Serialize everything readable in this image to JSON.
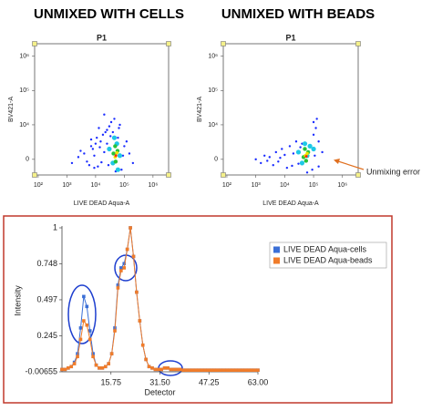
{
  "chart_data": [
    {
      "type": "scatter",
      "heading": "UNMIXED WITH CELLS",
      "title": "P1",
      "xlabel": "LIVE DEAD Aqua-A",
      "ylabel": "BV421-A",
      "xscale": "log",
      "yscale": "biexponential",
      "xlim": [
        75,
        3500000
      ],
      "ylim": [
        -2500,
        2300000
      ],
      "xticks": [
        {
          "value": 100,
          "label": "10²"
        },
        {
          "value": 1000,
          "label": "10³"
        },
        {
          "value": 10000,
          "label": "10⁴"
        },
        {
          "value": 100000,
          "label": "10⁵"
        },
        {
          "value": 1000000,
          "label": "10⁶"
        }
      ],
      "yticks": [
        0,
        {
          "value": 10000,
          "label": "10⁴"
        },
        {
          "value": 100000,
          "label": "10⁵"
        },
        {
          "value": 1000000,
          "label": "10⁶"
        }
      ],
      "series": [
        {
          "color": "#1a2cff",
          "x": [
            1500,
            2500,
            4000,
            6000,
            8000,
            10000,
            12000,
            15000,
            18000,
            20000,
            25000,
            30000,
            35000,
            40000,
            60000,
            80000,
            100000,
            150000,
            200000,
            3000,
            5000,
            7000,
            9000,
            11000,
            14000,
            22000,
            28000,
            45000,
            70000,
            120000,
            9000,
            16000,
            25000,
            33000,
            50000,
            65000,
            90000,
            20000,
            13000,
            7000
          ],
          "y": [
            -500,
            300,
            800,
            -800,
            1500,
            2500,
            -1000,
            3000,
            5000,
            1000,
            7000,
            9000,
            12000,
            6000,
            4000,
            -1500,
            2000,
            800,
            -500,
            1200,
            -300,
            2000,
            -1200,
            4000,
            1800,
            6000,
            -800,
            15000,
            10000,
            3000,
            500,
            -400,
            2500,
            4500,
            -1800,
            8000,
            500,
            20000,
            8000,
            3500
          ]
        },
        {
          "color": "#1ec8e6",
          "x": [
            30000,
            40000,
            55000,
            70000,
            45000,
            60000
          ],
          "y": [
            1500,
            -500,
            2500,
            500,
            4000,
            -1500
          ]
        },
        {
          "color": "#27c23a",
          "x": [
            42000,
            50000,
            58000,
            48000
          ],
          "y": [
            800,
            -300,
            1200,
            2000
          ]
        },
        {
          "color": "#f2e200",
          "x": [
            48000,
            55000
          ],
          "y": [
            300,
            900
          ]
        },
        {
          "color": "#ff2a00",
          "x": [
            51000
          ],
          "y": [
            500
          ]
        }
      ]
    },
    {
      "type": "scatter",
      "heading": "UNMIXED WITH BEADS",
      "title": "P1",
      "xlabel": "LIVE DEAD Aqua-A",
      "ylabel": "BV421-A",
      "xscale": "log",
      "yscale": "biexponential",
      "annotation": "Unmixing error",
      "xlim": [
        75,
        3500000
      ],
      "ylim": [
        -2500,
        2300000
      ],
      "xticks": [
        {
          "value": 100,
          "label": "10²"
        },
        {
          "value": 1000,
          "label": "10³"
        },
        {
          "value": 10000,
          "label": "10⁴"
        },
        {
          "value": 100000,
          "label": "10⁵"
        },
        {
          "value": 1000000,
          "label": "10⁶"
        }
      ],
      "yticks": [
        0,
        {
          "value": 10000,
          "label": "10⁴"
        },
        {
          "value": 100000,
          "label": "10⁵"
        },
        {
          "value": 1000000,
          "label": "10⁶"
        }
      ],
      "series": [
        {
          "color": "#1a2cff",
          "x": [
            1000,
            1500,
            2000,
            3000,
            4000,
            5000,
            6000,
            8000,
            10000,
            12000,
            15000,
            20000,
            25000,
            30000,
            35000,
            80000,
            100000,
            120000,
            150000,
            200000,
            100000,
            150000,
            90000,
            130000,
            2500,
            7000,
            18000,
            40000,
            60000,
            110000
          ],
          "y": [
            0,
            -500,
            500,
            300,
            -800,
            1000,
            -300,
            1500,
            600,
            -1200,
            2000,
            800,
            3000,
            -600,
            1800,
            2000,
            5000,
            8000,
            3000,
            1000,
            12000,
            -1000,
            -1500,
            15000,
            -200,
            200,
            -900,
            2500,
            -2000,
            500
          ]
        },
        {
          "color": "#1ec8e6",
          "x": [
            30000,
            40000,
            60000,
            75000,
            100000,
            50000
          ],
          "y": [
            1000,
            -500,
            500,
            2000,
            1500,
            2500
          ]
        },
        {
          "color": "#27c23a",
          "x": [
            45000,
            55000,
            65000,
            50000
          ],
          "y": [
            300,
            -200,
            1000,
            1500
          ]
        },
        {
          "color": "#f2e200",
          "x": [
            52000,
            60000
          ],
          "y": [
            500,
            800
          ]
        },
        {
          "color": "#ff2a00",
          "x": [
            56000
          ],
          "y": [
            400
          ]
        }
      ]
    },
    {
      "type": "line",
      "xlabel": "Detector",
      "ylabel": "Intensity",
      "legend": "upper right",
      "xlim": [
        0,
        63
      ],
      "ylim": [
        -0.00655,
        1
      ],
      "xticks": [
        15.75,
        {
          "value": 31.5,
          "label": "31.50"
        },
        47.25,
        {
          "value": 63,
          "label": "63.00"
        }
      ],
      "yticks": [
        -0.00655,
        0.245,
        0.497,
        0.748,
        1
      ],
      "x": [
        0,
        1,
        2,
        3,
        4,
        5,
        6,
        7,
        8,
        9,
        10,
        11,
        12,
        13,
        14,
        15,
        16,
        17,
        18,
        19,
        20,
        21,
        22,
        23,
        24,
        25,
        26,
        27,
        28,
        29,
        30,
        31,
        32,
        33,
        34,
        35,
        36,
        37,
        38,
        39,
        40,
        41,
        42,
        43,
        44,
        45,
        46,
        47,
        48,
        49,
        50,
        51,
        52,
        53,
        54,
        55,
        56,
        57,
        58,
        59,
        60,
        61,
        62,
        63
      ],
      "series": [
        {
          "name": "LIVE DEAD Aqua-cells",
          "color": "#3b6fd6",
          "values": [
            0.01,
            0.01,
            0.02,
            0.03,
            0.06,
            0.12,
            0.3,
            0.52,
            0.45,
            0.28,
            0.12,
            0.04,
            0.02,
            0.02,
            0.03,
            0.05,
            0.12,
            0.3,
            0.6,
            0.72,
            0.75,
            0.85,
            1.0,
            0.8,
            0.55,
            0.35,
            0.18,
            0.08,
            0.03,
            0.02,
            0.01,
            0.01,
            0.01,
            0.02,
            0.02,
            0.01,
            0.01,
            0.01,
            0.01,
            0.005,
            0.005,
            0.005,
            0.005,
            0.005,
            0.005,
            0.005,
            0.005,
            0.005,
            0.005,
            0.005,
            0.005,
            0.005,
            0.005,
            0.005,
            0.005,
            0.005,
            0.005,
            0.005,
            0.005,
            0.005,
            0.005,
            0.005,
            0.005,
            0.005
          ]
        },
        {
          "name": "LIVE DEAD Aqua-beads",
          "color": "#f07c2a",
          "values": [
            0.01,
            0.01,
            0.02,
            0.03,
            0.05,
            0.1,
            0.22,
            0.35,
            0.32,
            0.22,
            0.1,
            0.04,
            0.02,
            0.02,
            0.03,
            0.05,
            0.12,
            0.28,
            0.58,
            0.7,
            0.72,
            0.85,
            1.0,
            0.8,
            0.55,
            0.35,
            0.18,
            0.08,
            0.03,
            0.02,
            0.01,
            0.01,
            0.01,
            0.02,
            0.02,
            0.01,
            0.01,
            0.01,
            0.01,
            0.005,
            0.005,
            0.005,
            0.005,
            0.005,
            0.005,
            0.005,
            0.005,
            0.005,
            0.005,
            0.005,
            0.005,
            0.005,
            0.005,
            0.005,
            0.005,
            0.005,
            0.005,
            0.005,
            0.005,
            0.005,
            0.005,
            0.005,
            0.005,
            0.005
          ]
        }
      ]
    }
  ]
}
